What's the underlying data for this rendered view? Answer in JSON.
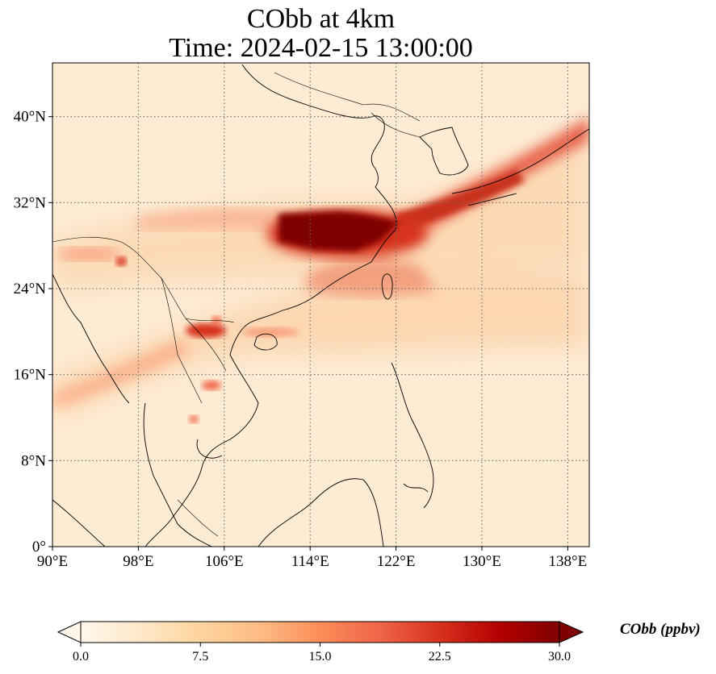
{
  "title": {
    "line1": "CObb at 4km",
    "line2": "Time: 2024-02-15 13:00:00"
  },
  "map": {
    "lon_range": [
      90,
      140
    ],
    "lat_range": [
      0,
      45
    ],
    "x_ticks": [
      {
        "value": 90,
        "label": "90°E"
      },
      {
        "value": 98,
        "label": "98°E"
      },
      {
        "value": 106,
        "label": "106°E"
      },
      {
        "value": 114,
        "label": "114°E"
      },
      {
        "value": 122,
        "label": "122°E"
      },
      {
        "value": 130,
        "label": "130°E"
      },
      {
        "value": 138,
        "label": "138°E"
      }
    ],
    "y_ticks": [
      {
        "value": 0,
        "label": "0°"
      },
      {
        "value": 8,
        "label": "8°N"
      },
      {
        "value": 16,
        "label": "16°N"
      },
      {
        "value": 24,
        "label": "24°N"
      },
      {
        "value": 32,
        "label": "32°N"
      },
      {
        "value": 40,
        "label": "40°N"
      }
    ],
    "gridlines": true,
    "background_color": "#fdebd3"
  },
  "colorbar": {
    "label": "CObb (ppbv)",
    "min": 0,
    "max": 30,
    "colormap": "OrRd",
    "extend": "both",
    "ticks": [
      {
        "value": 0,
        "label": "0.0"
      },
      {
        "value": 7.5,
        "label": "7.5"
      },
      {
        "value": 15,
        "label": "15.0"
      },
      {
        "value": 22.5,
        "label": "22.5"
      },
      {
        "value": 30,
        "label": "30.0"
      }
    ],
    "colors": [
      "#fff7ec",
      "#fee8c8",
      "#fdd49e",
      "#fdbb84",
      "#fc8d59",
      "#ef6548",
      "#d7301f",
      "#b30000",
      "#7f0000"
    ]
  }
}
